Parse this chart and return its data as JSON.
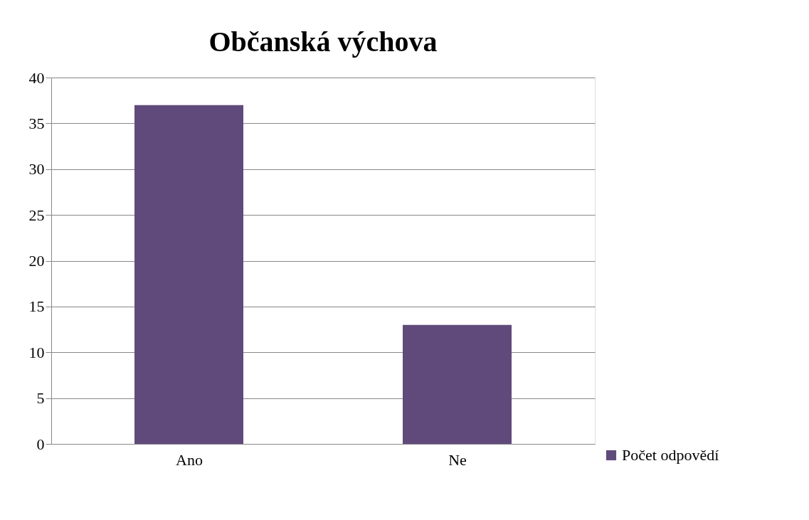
{
  "chart_data": {
    "type": "bar",
    "title": "Občanská výchova",
    "categories": [
      "Ano",
      "Ne"
    ],
    "series": [
      {
        "name": "Počet odpovědí",
        "color": "#604a7b",
        "values": [
          37,
          13
        ]
      }
    ],
    "ylim": [
      0,
      40
    ],
    "yticks": [
      0,
      5,
      10,
      15,
      20,
      25,
      30,
      35,
      40
    ],
    "grid": "y",
    "legend": "bottom right"
  }
}
